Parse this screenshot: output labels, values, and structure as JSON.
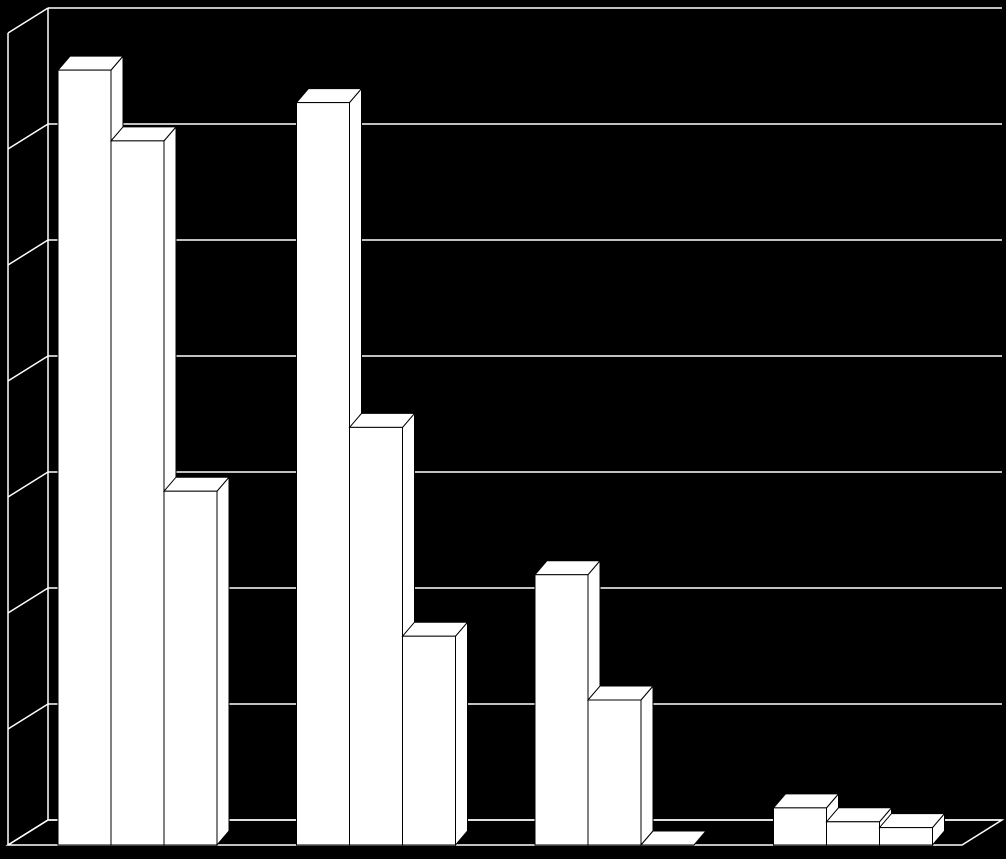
{
  "chart_data": {
    "type": "bar3d",
    "categories": [
      null,
      null,
      null,
      null
    ],
    "series": [
      {
        "color": "#ffffff",
        "values": [
          6.68,
          6.4,
          2.33,
          0.32
        ]
      },
      {
        "color": "#ffffff",
        "values": [
          6.07,
          3.6,
          1.25,
          0.2
        ]
      },
      {
        "color": "#ffffff",
        "values": [
          3.05,
          1.8,
          0,
          0.15
        ]
      }
    ],
    "ylim": [
      0,
      7
    ],
    "yticks": [
      0,
      1,
      2,
      3,
      4,
      5,
      6,
      7
    ],
    "grid": true,
    "background": "#000000",
    "grid_color": "#ffffff"
  }
}
